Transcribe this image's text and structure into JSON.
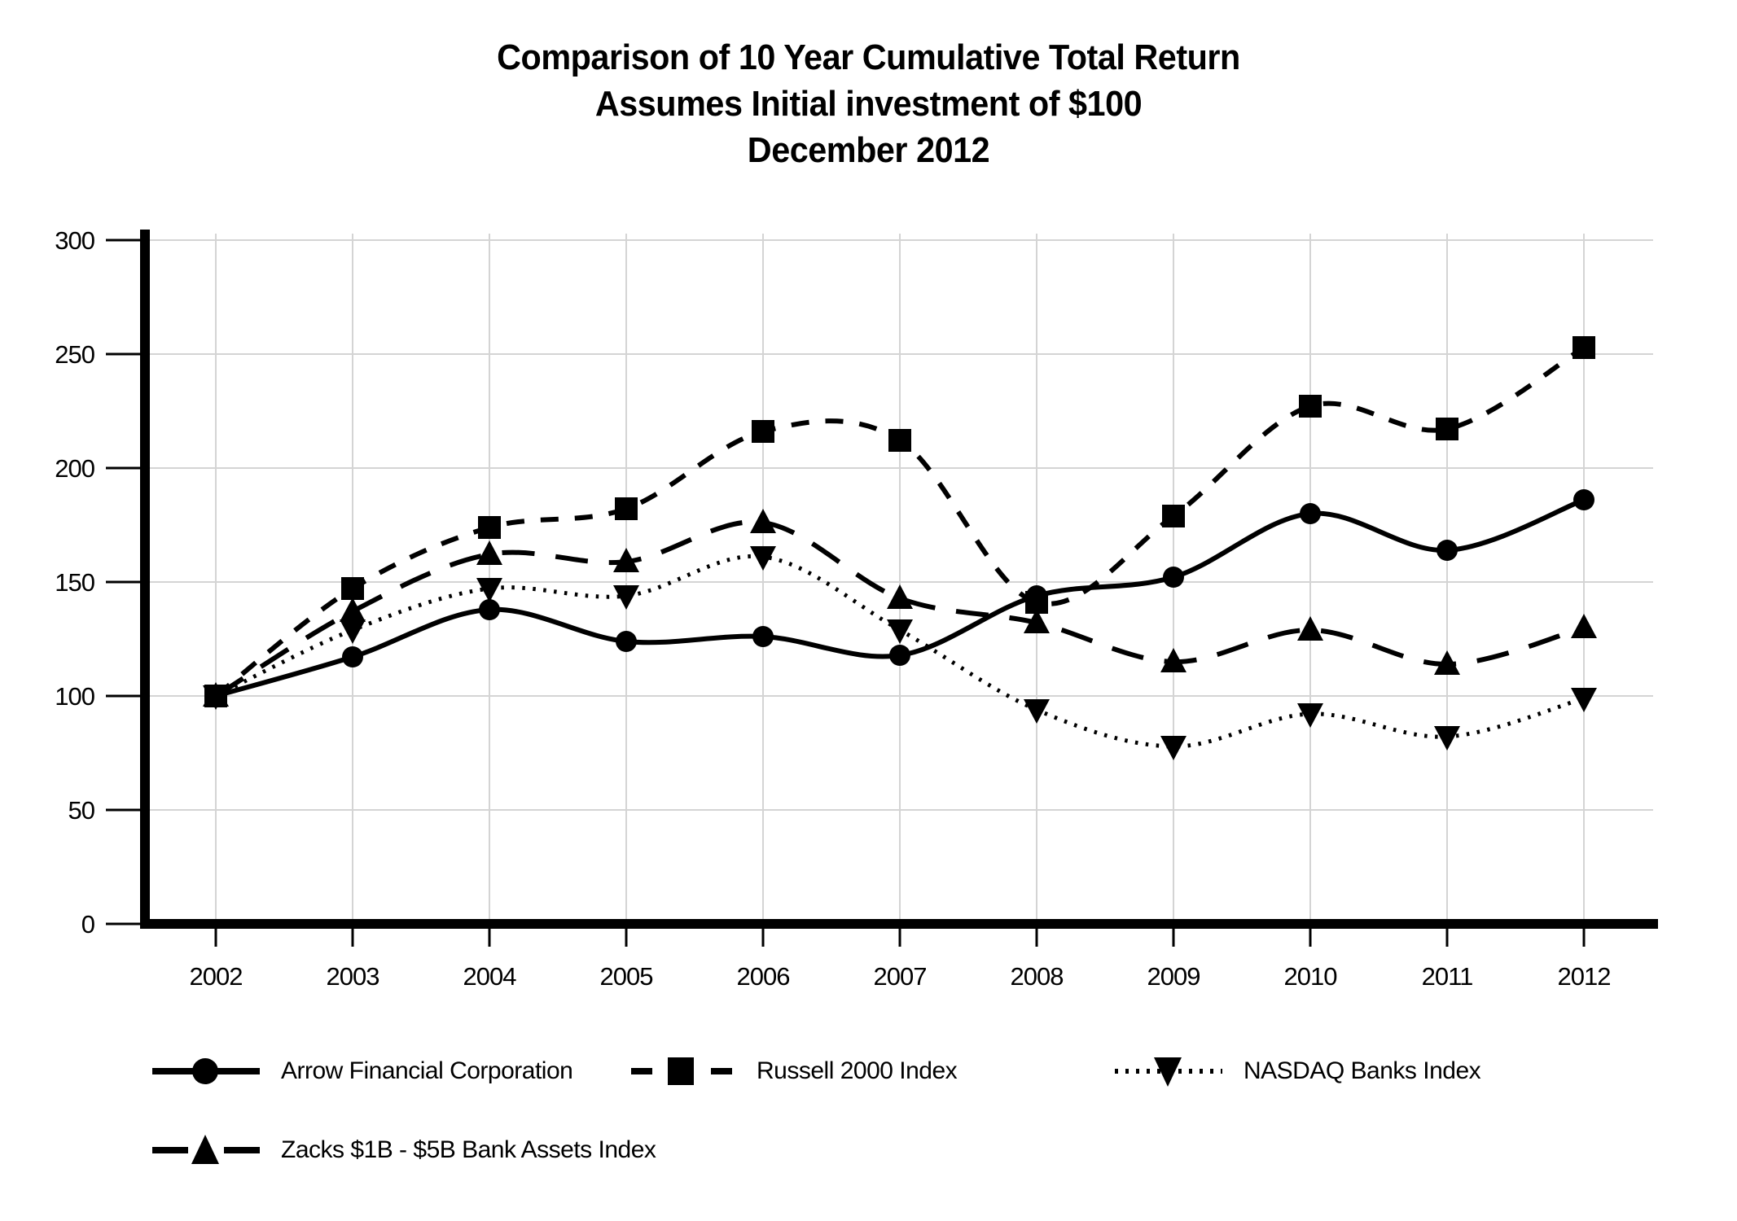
{
  "title": {
    "line1": "Comparison of 10 Year Cumulative Total Return",
    "line2": "Assumes Initial investment of $100",
    "line3": "December 2012"
  },
  "chart_data": {
    "type": "line",
    "x": [
      2002,
      2003,
      2004,
      2005,
      2006,
      2007,
      2008,
      2009,
      2010,
      2011,
      2012
    ],
    "series": [
      {
        "name": "Arrow Financial Corporation",
        "id": "arrow",
        "line_style": "solid",
        "marker": "circle",
        "values": [
          100,
          117,
          138,
          124,
          126,
          118,
          144,
          152,
          180,
          164,
          186
        ]
      },
      {
        "name": "Russell 2000 Index",
        "id": "russell",
        "line_style": "dashed",
        "marker": "square",
        "values": [
          100,
          147,
          174,
          182,
          216,
          212,
          141,
          179,
          227,
          217,
          253
        ]
      },
      {
        "name": "NASDAQ Banks Index",
        "id": "nasdaq",
        "line_style": "dotted",
        "marker": "triangle-down",
        "values": [
          100,
          129,
          147,
          144,
          161,
          129,
          94,
          78,
          92,
          82,
          99
        ]
      },
      {
        "name": "Zacks $1B - $5B Bank Assets Index",
        "id": "zacks",
        "line_style": "longdash",
        "marker": "triangle-up",
        "values": [
          100,
          137,
          162,
          159,
          176,
          143,
          132,
          115,
          129,
          114,
          130
        ]
      }
    ],
    "ylim": [
      0,
      300
    ],
    "y_ticks": [
      0,
      50,
      100,
      150,
      200,
      250,
      300
    ],
    "xlabel": "",
    "ylabel": "",
    "grid": true,
    "curve": "smooth",
    "legend_position": "bottom",
    "colors": {
      "line": "#000000",
      "grid": "#d4d4d4",
      "background": "#ffffff",
      "text": "#000000"
    }
  }
}
